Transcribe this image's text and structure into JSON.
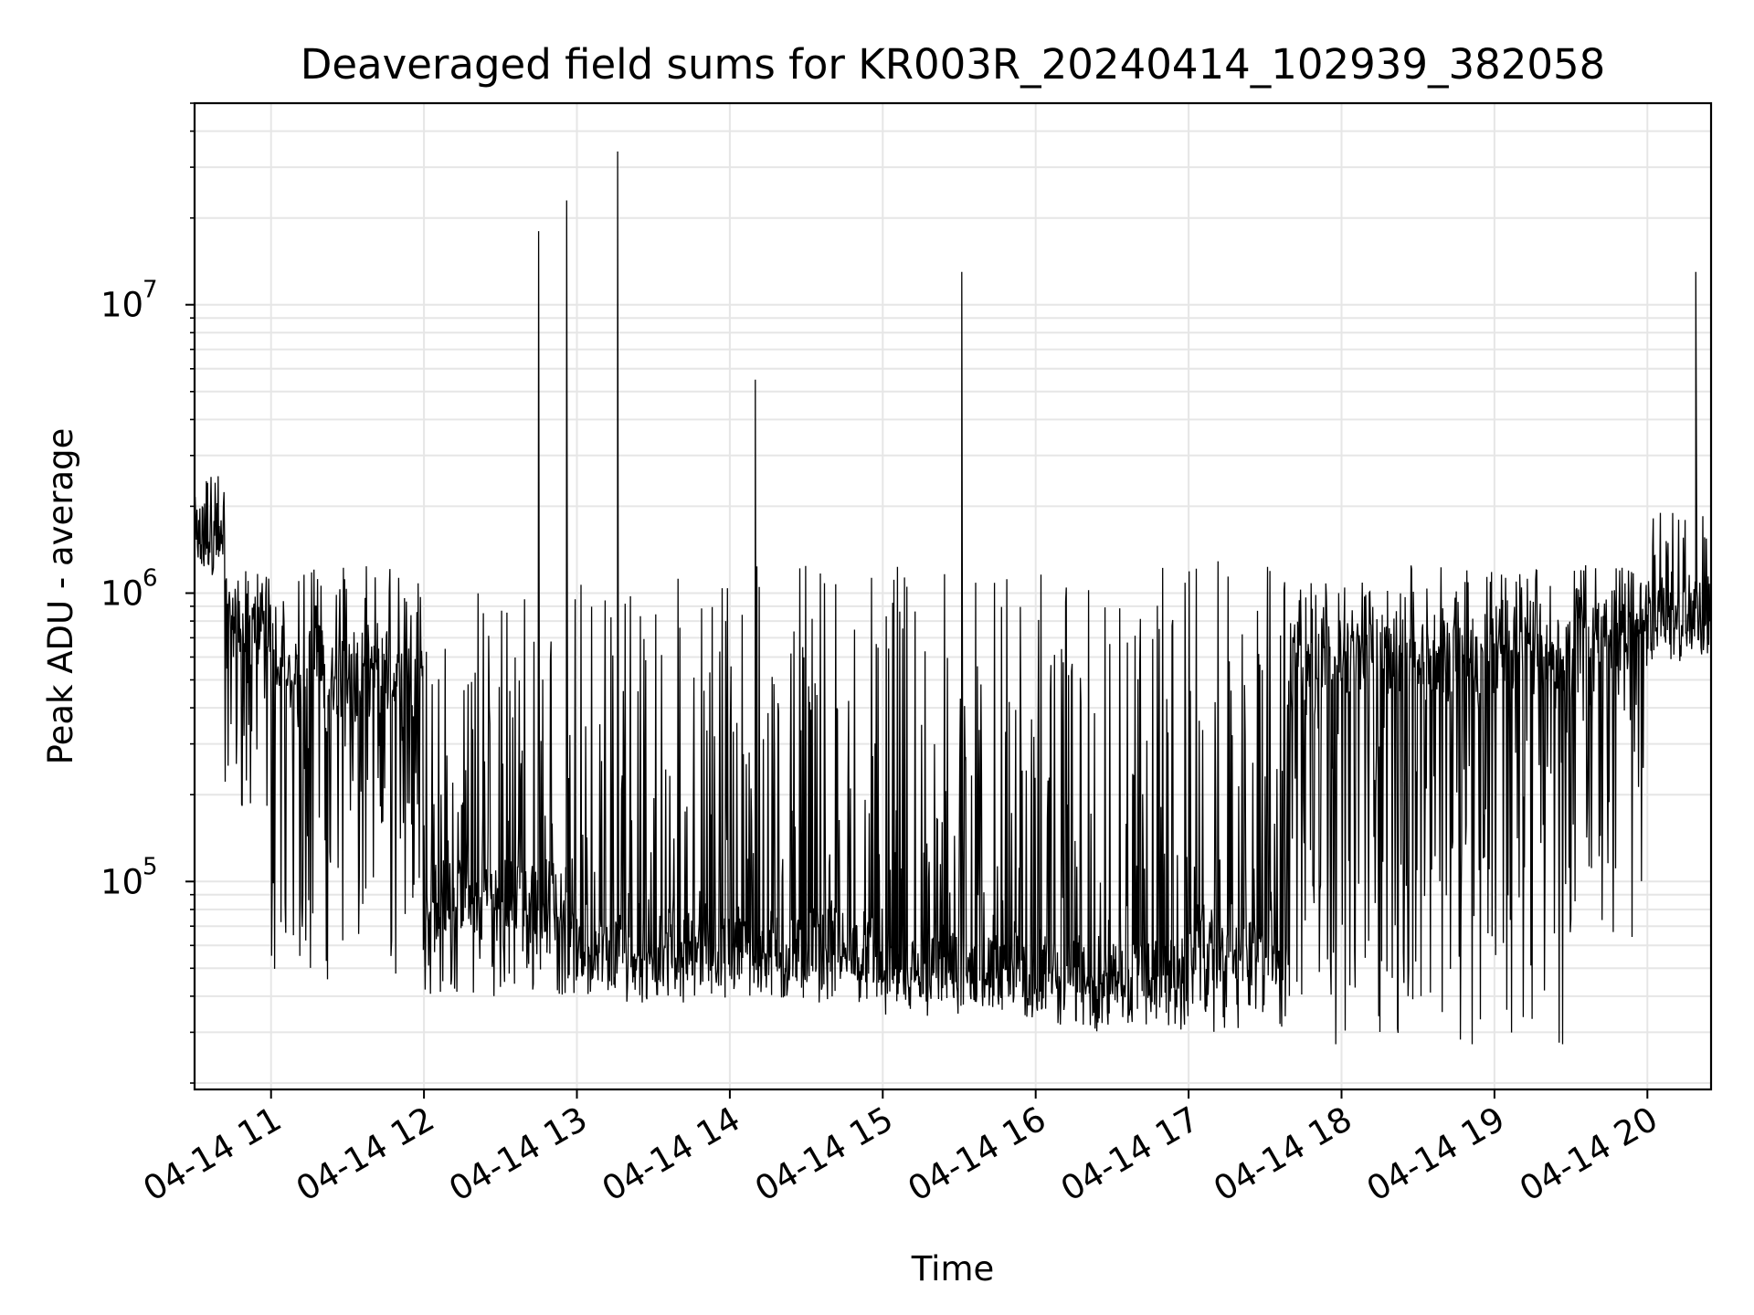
{
  "chart_data": {
    "type": "line",
    "title": "Deaveraged field sums for KR003R_20240414_102939_382058",
    "xlabel": "Time",
    "ylabel": "Peak ADU - average",
    "yscale": "log",
    "xlim": [
      "04-14 10:30",
      "04-14 20:25"
    ],
    "ylim": [
      19000,
      50000000
    ],
    "x_ticks": [
      "04-14 11",
      "04-14 12",
      "04-14 13",
      "04-14 14",
      "04-14 15",
      "04-14 16",
      "04-14 17",
      "04-14 18",
      "04-14 19",
      "04-14 20"
    ],
    "y_ticks": [
      {
        "value": 100000,
        "base": "10",
        "exponent": "5"
      },
      {
        "value": 1000000,
        "base": "10",
        "exponent": "6"
      },
      {
        "value": 10000000,
        "base": "10",
        "exponent": "7"
      }
    ],
    "grid": true,
    "line_color": "#000000",
    "series": [
      {
        "approximate": true,
        "segments": [
          {
            "start": "04-14 10:30",
            "end": "04-14 10:42",
            "base": 1600000,
            "low": 1100000,
            "high": 2600000
          },
          {
            "start": "04-14 10:42",
            "end": "04-14 11:00",
            "base": 750000,
            "low": 150000,
            "high": 1200000
          },
          {
            "start": "04-14 11:00",
            "end": "04-14 12:00",
            "base": 500000,
            "low": 45000,
            "high": 1250000
          },
          {
            "start": "04-14 12:00",
            "end": "04-14 13:00",
            "base": 90000,
            "low": 40000,
            "high": 1250000
          },
          {
            "start": "04-14 13:00",
            "end": "04-14 15:00",
            "base": 60000,
            "low": 38000,
            "high": 1250000
          },
          {
            "start": "04-14 15:00",
            "end": "04-14 16:00",
            "base": 50000,
            "low": 33000,
            "high": 1250000
          },
          {
            "start": "04-14 16:00",
            "end": "04-14 17:00",
            "base": 48000,
            "low": 30000,
            "high": 1250000
          },
          {
            "start": "04-14 17:00",
            "end": "04-14 17:40",
            "base": 60000,
            "low": 30000,
            "high": 1300000
          },
          {
            "start": "04-14 17:40",
            "end": "04-14 19:30",
            "base": 600000,
            "low": 27000,
            "high": 1250000
          },
          {
            "start": "04-14 19:30",
            "end": "04-14 20:00",
            "base": 700000,
            "low": 60000,
            "high": 1250000
          },
          {
            "start": "04-14 20:00",
            "end": "04-14 20:25",
            "base": 850000,
            "low": 580000,
            "high": 1900000
          }
        ],
        "spikes": [
          {
            "x": "04-14 12:45",
            "y": 18000000
          },
          {
            "x": "04-14 12:56",
            "y": 23000000
          },
          {
            "x": "04-14 13:16",
            "y": 34000000
          },
          {
            "x": "04-14 14:10",
            "y": 5500000
          },
          {
            "x": "04-14 15:31",
            "y": 13000000
          },
          {
            "x": "04-14 20:19",
            "y": 13000000
          }
        ]
      }
    ]
  }
}
